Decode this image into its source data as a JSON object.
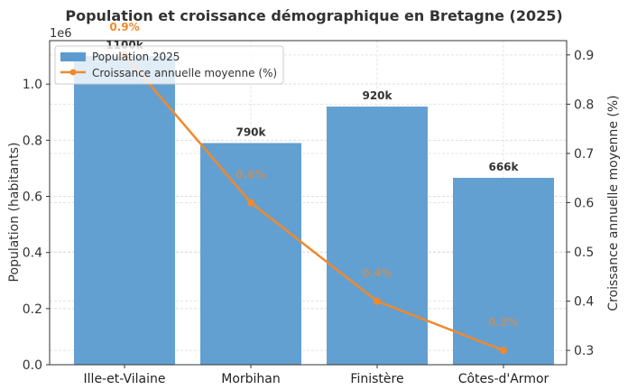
{
  "chart_data": {
    "type": "bar+line",
    "title": "Population et croissance démographique en Bretagne (2025)",
    "categories": [
      "Ille-et-Vilaine",
      "Morbihan",
      "Finistère",
      "Côtes-d'Armor"
    ],
    "series": [
      {
        "name": "Population 2025",
        "type": "bar",
        "axis": "left",
        "values": [
          1100000,
          790000,
          920000,
          666000
        ],
        "labels": [
          "1100k",
          "790k",
          "920k",
          "666k"
        ],
        "color": "#5b9bd0"
      },
      {
        "name": "Croissance annuelle moyenne (%)",
        "type": "line",
        "axis": "right",
        "values": [
          0.9,
          0.6,
          0.4,
          0.3
        ],
        "labels": [
          "0.9%",
          "0.6%",
          "0.4%",
          "0.3%"
        ],
        "color": "#f0892b"
      }
    ],
    "ylabel": "Population (habitants)",
    "ylabel_right": "Croissance annuelle moyenne (%)",
    "y_offset_label": "1e6",
    "ylim": [
      0,
      1.155
    ],
    "ylim_right": [
      0.271,
      0.929
    ],
    "yticks": [
      "0.0",
      "0.2",
      "0.4",
      "0.6",
      "0.8",
      "1.0"
    ],
    "yticks_right": [
      "0.3",
      "0.4",
      "0.5",
      "0.6",
      "0.7",
      "0.8",
      "0.9"
    ],
    "grid": true,
    "legend": "top-left"
  }
}
